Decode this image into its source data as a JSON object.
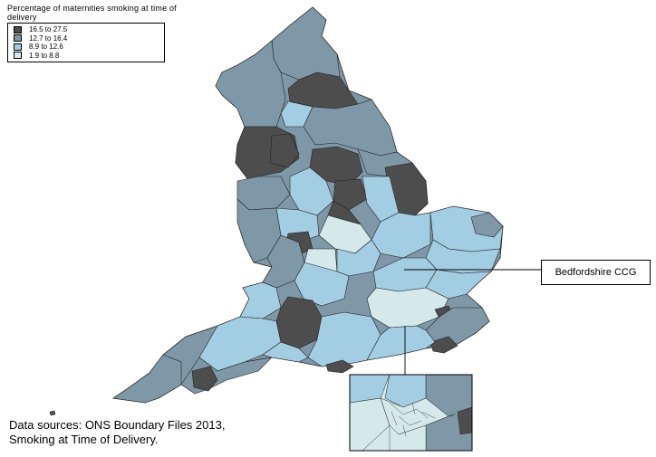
{
  "legend": {
    "title": "Percentage of maternities smoking at time of delivery",
    "items": [
      {
        "label": "16.5 to 27.5",
        "color": "#4d4d4d"
      },
      {
        "label": "12.7 to 16.4",
        "color": "#7f98a8"
      },
      {
        "label": "8.9 to 12.6",
        "color": "#a3cde3"
      },
      {
        "label": "1.9 to  8.8",
        "color": "#d5e9ea"
      }
    ]
  },
  "callout": {
    "label": "Bedfordshire CCG"
  },
  "sources": {
    "line1": "Data sources: ONS Boundary Files 2013,",
    "line2": "Smoking at Time of Delivery."
  }
}
